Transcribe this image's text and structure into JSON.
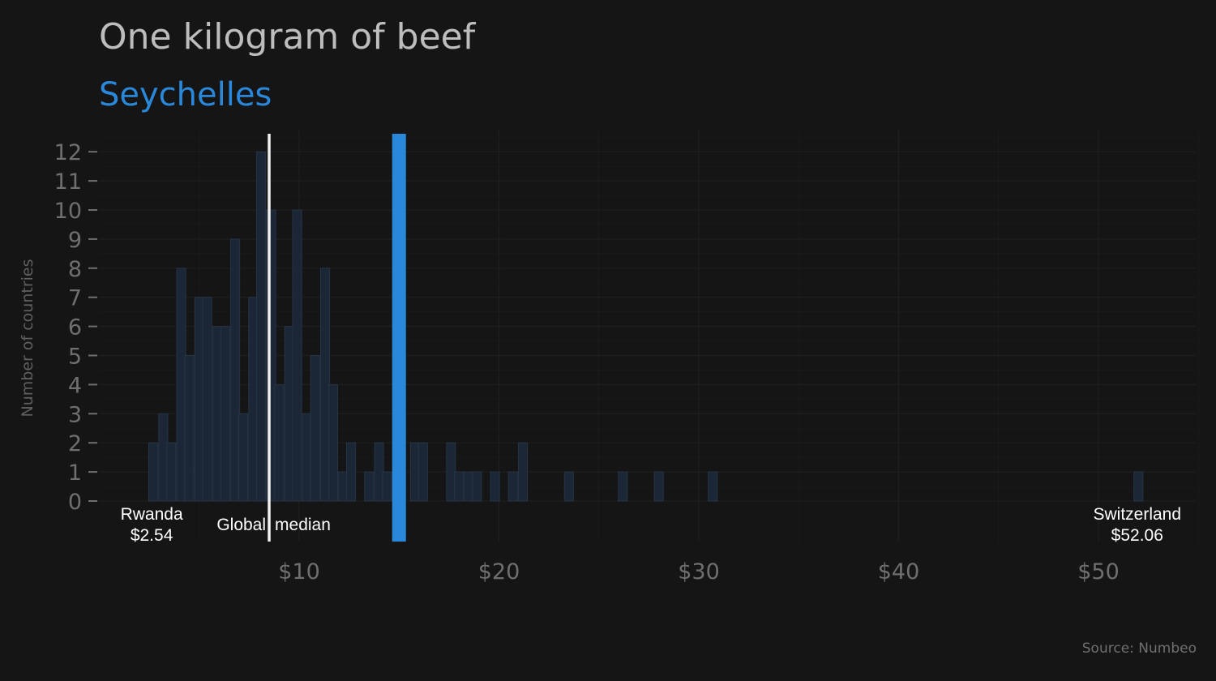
{
  "chart_data": {
    "type": "bar",
    "title": "One kilogram of beef",
    "subtitle": "Seychelles",
    "ylabel": "Number of countries",
    "xlabel": "",
    "source": "Source: Numbeo",
    "xlim": [
      0,
      55
    ],
    "ylim": [
      0,
      12
    ],
    "x_ticks": [
      10,
      20,
      30,
      40,
      50
    ],
    "x_tick_labels": [
      "$10",
      "$20",
      "$30",
      "$40",
      "$50"
    ],
    "y_ticks": [
      0,
      1,
      2,
      3,
      4,
      5,
      6,
      7,
      8,
      9,
      10,
      11,
      12
    ],
    "y_tick_labels": [
      "0",
      "1",
      "2",
      "3",
      "4",
      "5",
      "6",
      "7",
      "8",
      "9",
      "10",
      "11",
      "12"
    ],
    "grid": true,
    "bin_width": 0.45,
    "bins": [
      {
        "x": 2.7,
        "count": 2
      },
      {
        "x": 3.2,
        "count": 3
      },
      {
        "x": 3.6,
        "count": 2
      },
      {
        "x": 4.1,
        "count": 8
      },
      {
        "x": 4.5,
        "count": 5
      },
      {
        "x": 5.0,
        "count": 7
      },
      {
        "x": 5.4,
        "count": 7
      },
      {
        "x": 5.9,
        "count": 6
      },
      {
        "x": 6.3,
        "count": 6
      },
      {
        "x": 6.8,
        "count": 9
      },
      {
        "x": 7.2,
        "count": 3
      },
      {
        "x": 7.7,
        "count": 7
      },
      {
        "x": 8.1,
        "count": 12
      },
      {
        "x": 8.6,
        "count": 10
      },
      {
        "x": 9.0,
        "count": 4
      },
      {
        "x": 9.5,
        "count": 6
      },
      {
        "x": 9.9,
        "count": 10
      },
      {
        "x": 10.4,
        "count": 3
      },
      {
        "x": 10.8,
        "count": 5
      },
      {
        "x": 11.3,
        "count": 8
      },
      {
        "x": 11.7,
        "count": 4
      },
      {
        "x": 12.2,
        "count": 1
      },
      {
        "x": 12.6,
        "count": 2
      },
      {
        "x": 13.5,
        "count": 1
      },
      {
        "x": 14.0,
        "count": 2
      },
      {
        "x": 14.4,
        "count": 1
      },
      {
        "x": 15.8,
        "count": 2
      },
      {
        "x": 16.2,
        "count": 2
      },
      {
        "x": 17.6,
        "count": 2
      },
      {
        "x": 18.0,
        "count": 1
      },
      {
        "x": 18.5,
        "count": 1
      },
      {
        "x": 18.9,
        "count": 1
      },
      {
        "x": 19.8,
        "count": 1
      },
      {
        "x": 20.7,
        "count": 1
      },
      {
        "x": 21.2,
        "count": 2
      },
      {
        "x": 23.5,
        "count": 1
      },
      {
        "x": 26.2,
        "count": 1
      },
      {
        "x": 28.0,
        "count": 1
      },
      {
        "x": 30.7,
        "count": 1
      },
      {
        "x": 52.0,
        "count": 1
      }
    ],
    "highlight": {
      "name": "Seychelles",
      "value": 15.0
    },
    "median": {
      "label": "Global median",
      "value": 8.5
    },
    "annotations": [
      {
        "name": "Rwanda",
        "value_label": "$2.54",
        "x": 2.54
      },
      {
        "name": "Switzerland",
        "value_label": "$52.06",
        "x": 52.06
      }
    ],
    "colors": {
      "background": "#151515",
      "bar_fill": "#1b2736",
      "bar_stroke": "#263444",
      "highlight": "#2a88db",
      "median": "#f0f0f0",
      "title": "#bdbdbd",
      "subtitle": "#2a88db",
      "tick": "#6f6f6f",
      "annotation": "#ffffff",
      "grid": "#1f1f1f"
    }
  }
}
